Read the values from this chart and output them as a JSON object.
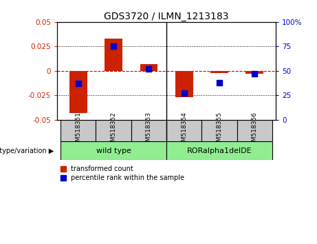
{
  "title": "GDS3720 / ILMN_1213183",
  "categories": [
    "GSM518351",
    "GSM518352",
    "GSM518353",
    "GSM518354",
    "GSM518355",
    "GSM518356"
  ],
  "transformed_counts": [
    -0.043,
    0.033,
    0.007,
    -0.027,
    -0.002,
    -0.003
  ],
  "percentile_ranks": [
    37,
    75,
    52,
    27,
    38,
    47
  ],
  "groups": [
    "wild type",
    "wild type",
    "wild type",
    "RORalpha1delDE",
    "RORalpha1delDE",
    "RORalpha1delDE"
  ],
  "bar_color": "#cc2200",
  "dot_color": "#0000cc",
  "left_ylim": [
    -0.05,
    0.05
  ],
  "right_ylim": [
    0,
    100
  ],
  "left_yticks": [
    -0.05,
    -0.025,
    0,
    0.025,
    0.05
  ],
  "right_yticks": [
    0,
    25,
    50,
    75,
    100
  ],
  "left_yticklabels": [
    "-0.05",
    "-0.025",
    "0",
    "0.025",
    "0.05"
  ],
  "right_yticklabels": [
    "0",
    "25",
    "50",
    "75",
    "100%"
  ],
  "background_color": "#ffffff",
  "zero_line_color": "#cc0000",
  "genotype_label": "genotype/variation",
  "legend_items": [
    {
      "label": "transformed count",
      "color": "#cc2200"
    },
    {
      "label": "percentile rank within the sample",
      "color": "#0000cc"
    }
  ],
  "bar_width": 0.5,
  "dot_size": 40,
  "group_divider": 2.5,
  "wt_label": "wild type",
  "ro_label": "RORalpha1delDE",
  "group_bg": "#90EE90",
  "sample_bg": "#c8c8c8"
}
